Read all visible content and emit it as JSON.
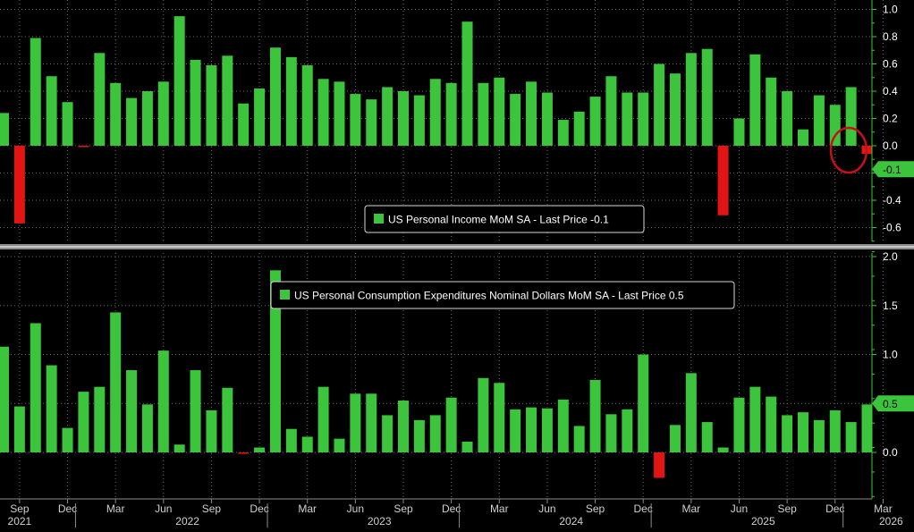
{
  "colors": {
    "background": "#000000",
    "positive": "#3cc43c",
    "negative": "#e31414",
    "axis": "#3cc43c",
    "grid": "#6b6b6b",
    "divider": "#8c8c8c",
    "label_text": "#ffffff",
    "highlight_circle": "#c4111a",
    "month_text": "#d0d0d0"
  },
  "x_axis": {
    "month_labels": [
      "Sep",
      "Dec",
      "Mar",
      "Jun",
      "Sep",
      "Dec",
      "Mar",
      "Jun",
      "Sep",
      "Dec",
      "Mar",
      "Jun",
      "Sep",
      "Dec",
      "Mar",
      "Jun",
      "Sep",
      "Dec",
      "Mar"
    ],
    "year_labels": [
      "2021",
      "2022",
      "2023",
      "2024",
      "2025",
      "2026"
    ]
  },
  "chart_data": [
    {
      "type": "bar",
      "legend": "US Personal Income MoM SA - Last Price -0.1",
      "last_value_label": "-0.1",
      "ylim": [
        -0.7,
        1.0
      ],
      "yticks": [
        "1.0",
        "0.8",
        "0.6",
        "0.4",
        "0.2",
        "0.0",
        "-0.2",
        "-0.4",
        "-0.6"
      ],
      "categories": [
        "Aug 2021",
        "Sep 2021",
        "Oct 2021",
        "Nov 2021",
        "Dec 2021",
        "Jan 2022",
        "Feb 2022",
        "Mar 2022",
        "Apr 2022",
        "May 2022",
        "Jun 2022",
        "Jul 2022",
        "Aug 2022",
        "Sep 2022",
        "Oct 2022",
        "Nov 2022",
        "Dec 2022",
        "Jan 2023",
        "Feb 2023",
        "Mar 2023",
        "Apr 2023",
        "May 2023",
        "Jun 2023",
        "Jul 2023",
        "Aug 2023",
        "Sep 2023",
        "Oct 2023",
        "Nov 2023",
        "Dec 2023",
        "Jan 2024",
        "Feb 2024",
        "Mar 2024",
        "Apr 2024",
        "May 2024",
        "Jun 2024",
        "Jul 2024",
        "Aug 2024",
        "Sep 2024",
        "Oct 2024",
        "Nov 2024",
        "Dec 2024",
        "Jan 2025",
        "Feb 2025",
        "Mar 2025",
        "Apr 2025",
        "May 2025",
        "Jun 2025",
        "Jul 2025",
        "Aug 2025",
        "Sep 2025",
        "Oct 2025",
        "Nov 2025",
        "Dec 2025",
        "Jan 2026",
        "Feb 2026"
      ],
      "values": [
        0.24,
        -0.57,
        0.79,
        0.51,
        0.32,
        -0.01,
        0.68,
        0.46,
        0.35,
        0.4,
        0.47,
        0.95,
        0.63,
        0.59,
        0.66,
        0.31,
        0.42,
        0.72,
        0.65,
        0.59,
        0.49,
        0.47,
        0.38,
        0.34,
        0.43,
        0.4,
        0.37,
        0.49,
        0.46,
        0.91,
        0.46,
        0.5,
        0.38,
        0.47,
        0.39,
        0.19,
        0.25,
        0.36,
        0.51,
        0.39,
        0.39,
        0.6,
        0.53,
        0.68,
        0.71,
        -0.51,
        0.2,
        0.67,
        0.5,
        0.4,
        0.12,
        0.37,
        0.3,
        0.43,
        -0.06
      ]
    },
    {
      "type": "bar",
      "legend": "US Personal Consumption Expenditures Nominal Dollars MoM SA - Last Price 0.5",
      "last_value_label": "0.5",
      "ylim": [
        -0.45,
        2.1
      ],
      "yticks": [
        "2.0",
        "1.5",
        "1.0",
        "0.5",
        "0.0"
      ],
      "categories": [
        "Aug 2021",
        "Sep 2021",
        "Oct 2021",
        "Nov 2021",
        "Dec 2021",
        "Jan 2022",
        "Feb 2022",
        "Mar 2022",
        "Apr 2022",
        "May 2022",
        "Jun 2022",
        "Jul 2022",
        "Aug 2022",
        "Sep 2022",
        "Oct 2022",
        "Nov 2022",
        "Dec 2022",
        "Jan 2023",
        "Feb 2023",
        "Mar 2023",
        "Apr 2023",
        "May 2023",
        "Jun 2023",
        "Jul 2023",
        "Aug 2023",
        "Sep 2023",
        "Oct 2023",
        "Nov 2023",
        "Dec 2023",
        "Jan 2024",
        "Feb 2024",
        "Mar 2024",
        "Apr 2024",
        "May 2024",
        "Jun 2024",
        "Jul 2024",
        "Aug 2024",
        "Sep 2024",
        "Oct 2024",
        "Nov 2024",
        "Dec 2024",
        "Jan 2025",
        "Feb 2025",
        "Mar 2025",
        "Apr 2025",
        "May 2025",
        "Jun 2025",
        "Jul 2025",
        "Aug 2025",
        "Sep 2025",
        "Oct 2025",
        "Nov 2025",
        "Dec 2025",
        "Jan 2026",
        "Feb 2026"
      ],
      "values": [
        1.08,
        0.47,
        1.32,
        0.89,
        0.25,
        0.62,
        0.67,
        1.43,
        0.84,
        0.49,
        1.04,
        0.08,
        0.84,
        0.43,
        0.66,
        -0.01,
        0.05,
        1.86,
        0.24,
        0.16,
        0.67,
        0.14,
        0.6,
        0.6,
        0.38,
        0.53,
        0.33,
        0.38,
        0.56,
        0.11,
        0.76,
        0.71,
        0.44,
        0.46,
        0.45,
        0.54,
        0.27,
        0.74,
        0.39,
        0.44,
        1.0,
        -0.26,
        0.28,
        0.81,
        0.31,
        0.05,
        0.56,
        0.67,
        0.57,
        0.38,
        0.41,
        0.33,
        0.43,
        0.31,
        0.49
      ]
    }
  ]
}
